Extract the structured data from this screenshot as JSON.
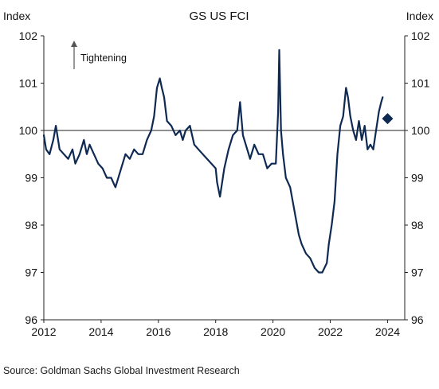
{
  "chart_data": {
    "type": "line",
    "title": "GS US FCI",
    "y_axis_label_left": "Index",
    "y_axis_label_right": "Index",
    "ylim": [
      96,
      102
    ],
    "xlim": [
      2012,
      2024.6
    ],
    "y_ticks": [
      96,
      97,
      98,
      99,
      100,
      101,
      102
    ],
    "x_ticks": [
      2012,
      2014,
      2016,
      2018,
      2020,
      2022,
      2024
    ],
    "reference_line": 100,
    "annotation": "Tightening",
    "line_color": "#0e2a52",
    "series": [
      {
        "values_x": [
          2012.0,
          2012.08,
          2012.2,
          2012.33,
          2012.42,
          2012.55,
          2012.7,
          2012.85,
          2013.0,
          2013.1,
          2013.25,
          2013.4,
          2013.5,
          2013.6,
          2013.75,
          2013.9,
          2014.05,
          2014.2,
          2014.35,
          2014.5,
          2014.65,
          2014.75,
          2014.85,
          2015.0,
          2015.15,
          2015.3,
          2015.45,
          2015.6,
          2015.75,
          2015.85,
          2015.95,
          2016.05,
          2016.12,
          2016.2,
          2016.3,
          2016.45,
          2016.6,
          2016.75,
          2016.85,
          2016.95,
          2017.1,
          2017.25,
          2017.4,
          2017.55,
          2017.7,
          2017.85,
          2018.0,
          2018.05,
          2018.15,
          2018.3,
          2018.45,
          2018.6,
          2018.75,
          2018.85,
          2018.95,
          2019.05,
          2019.2,
          2019.35,
          2019.5,
          2019.65,
          2019.8,
          2019.95,
          2020.1,
          2020.18,
          2020.22,
          2020.28,
          2020.35,
          2020.45,
          2020.6,
          2020.75,
          2020.9,
          2021.0,
          2021.15,
          2021.3,
          2021.45,
          2021.6,
          2021.72,
          2021.8,
          2021.88,
          2021.95,
          2022.05,
          2022.15,
          2022.25,
          2022.35,
          2022.45,
          2022.55,
          2022.62,
          2022.7,
          2022.8,
          2022.9,
          2023.0,
          2023.1,
          2023.2,
          2023.3,
          2023.4,
          2023.5,
          2023.6,
          2023.7,
          2023.78,
          2023.83
        ],
        "values_y": [
          99.9,
          99.6,
          99.5,
          99.8,
          100.1,
          99.6,
          99.5,
          99.4,
          99.6,
          99.3,
          99.5,
          99.8,
          99.5,
          99.7,
          99.5,
          99.3,
          99.2,
          99.0,
          99.0,
          98.8,
          99.1,
          99.3,
          99.5,
          99.4,
          99.6,
          99.5,
          99.5,
          99.8,
          100.0,
          100.3,
          100.9,
          101.1,
          100.9,
          100.7,
          100.2,
          100.1,
          99.9,
          100.0,
          99.8,
          100.0,
          100.1,
          99.7,
          99.6,
          99.5,
          99.4,
          99.3,
          99.2,
          98.9,
          98.6,
          99.2,
          99.6,
          99.9,
          100.0,
          100.6,
          99.9,
          99.7,
          99.4,
          99.7,
          99.5,
          99.5,
          99.2,
          99.3,
          99.3,
          100.4,
          101.7,
          100.0,
          99.5,
          99.0,
          98.8,
          98.3,
          97.8,
          97.6,
          97.4,
          97.3,
          97.1,
          97.0,
          97.0,
          97.1,
          97.2,
          97.6,
          98.0,
          98.5,
          99.5,
          100.1,
          100.3,
          100.9,
          100.7,
          100.3,
          100.0,
          99.8,
          100.2,
          99.8,
          100.1,
          99.6,
          99.7,
          99.6,
          100.0,
          100.4,
          100.6,
          100.7
        ]
      }
    ],
    "marker": {
      "x": 2024.0,
      "y": 100.25
    }
  },
  "footer": {
    "source": "Source: Goldman Sachs Global Investment Research"
  }
}
